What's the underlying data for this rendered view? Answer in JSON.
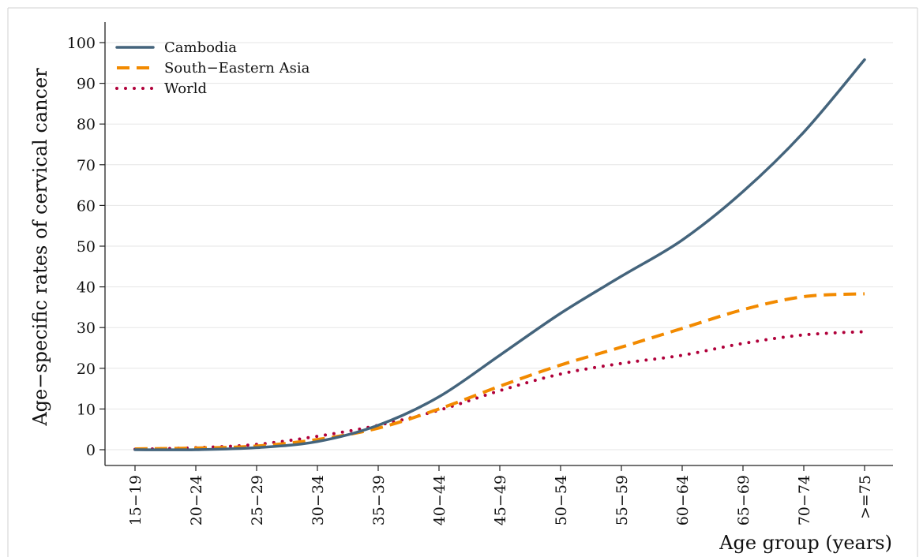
{
  "colors": {
    "background": "#ffffff",
    "grid": "#e6e6e6",
    "axis": "#222222",
    "text": "#111111"
  },
  "chart_data": {
    "type": "line",
    "title": "",
    "xlabel": "Age group (years)",
    "ylabel": "Age−specific rates of cervical cancer",
    "ylim": [
      0,
      100
    ],
    "yticks": [
      0,
      10,
      20,
      30,
      40,
      50,
      60,
      70,
      80,
      90,
      100
    ],
    "grid": true,
    "legend_position": "top-left",
    "categories": [
      "15−19",
      "20−24",
      "25−29",
      "30−34",
      "35−39",
      "40−44",
      "45−49",
      "50−54",
      "55−59",
      "60−64",
      "65−69",
      "70−74",
      ">=75"
    ],
    "series": [
      {
        "name": "Cambodia",
        "color": "#44647c",
        "style": "solid",
        "values": [
          0.0,
          0.0,
          0.5,
          2.0,
          6.0,
          13.0,
          23.2,
          33.5,
          42.6,
          51.5,
          63.4,
          78.0,
          95.8
        ]
      },
      {
        "name": "South−Eastern Asia",
        "color": "#f28a00",
        "style": "dashed",
        "values": [
          0.2,
          0.4,
          0.9,
          2.5,
          5.3,
          10.0,
          15.6,
          20.8,
          25.2,
          29.8,
          34.4,
          37.6,
          38.3
        ]
      },
      {
        "name": "World",
        "color": "#b0003a",
        "style": "dotted",
        "values": [
          0.1,
          0.5,
          1.3,
          3.3,
          6.0,
          9.7,
          14.5,
          18.6,
          21.2,
          23.2,
          26.1,
          28.2,
          29.0
        ]
      }
    ]
  }
}
